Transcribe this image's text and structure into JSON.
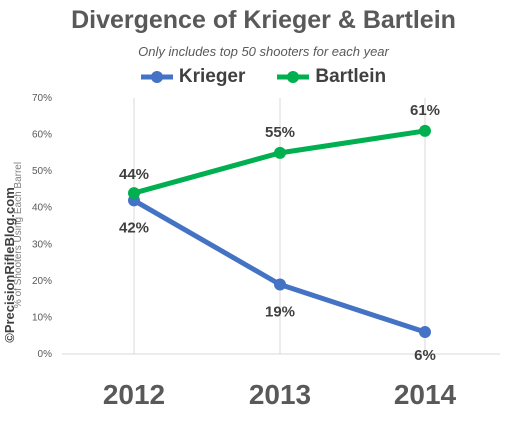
{
  "chart_data": {
    "type": "line",
    "title": "Divergence of Krieger & Bartlein",
    "subtitle": "Only includes top 50 shooters for each year",
    "ylabel": "% of Shooters Using Each Barrel",
    "xlabel": "",
    "categories": [
      "2012",
      "2013",
      "2014"
    ],
    "ylim": [
      0,
      70
    ],
    "yticks": [
      "0%",
      "10%",
      "20%",
      "30%",
      "40%",
      "50%",
      "60%",
      "70%"
    ],
    "grid": false,
    "legend_position": "top-center",
    "series": [
      {
        "name": "Krieger",
        "values": [
          42,
          19,
          6
        ],
        "labels": [
          "42%",
          "19%",
          "6%"
        ],
        "color": "#4472C4"
      },
      {
        "name": "Bartlein",
        "values": [
          44,
          55,
          61
        ],
        "labels": [
          "44%",
          "55%",
          "61%"
        ],
        "color": "#00B050"
      }
    ]
  },
  "watermark": "©PrecisionRifleBlog.com"
}
